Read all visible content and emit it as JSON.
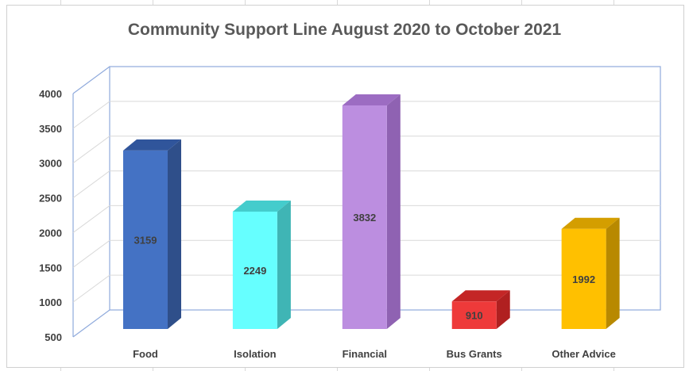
{
  "chart_data": {
    "type": "bar",
    "title": "Community Support Line August 2020 to October 2021",
    "categories": [
      "Food",
      "Isolation",
      "Financial",
      "Bus Grants",
      "Other Advice"
    ],
    "values": [
      3159,
      2249,
      3832,
      910,
      1992
    ],
    "colors": [
      {
        "front": "#4472c4",
        "top": "#30559b",
        "side": "#2f4f8a"
      },
      {
        "front": "#66ffff",
        "top": "#44cccc",
        "side": "#3fb5b5"
      },
      {
        "front": "#bc8ee0",
        "top": "#9c6cc2",
        "side": "#8f62b2"
      },
      {
        "front": "#ee3a3a",
        "top": "#c42626",
        "side": "#b02020"
      },
      {
        "front": "#ffc000",
        "top": "#d49e00",
        "side": "#b88900"
      }
    ],
    "ylim": [
      500,
      4000
    ],
    "yticks": [
      "500",
      "1000",
      "1500",
      "2000",
      "2500",
      "3000",
      "3500",
      "4000"
    ],
    "grid": true,
    "style": "3d-column"
  }
}
